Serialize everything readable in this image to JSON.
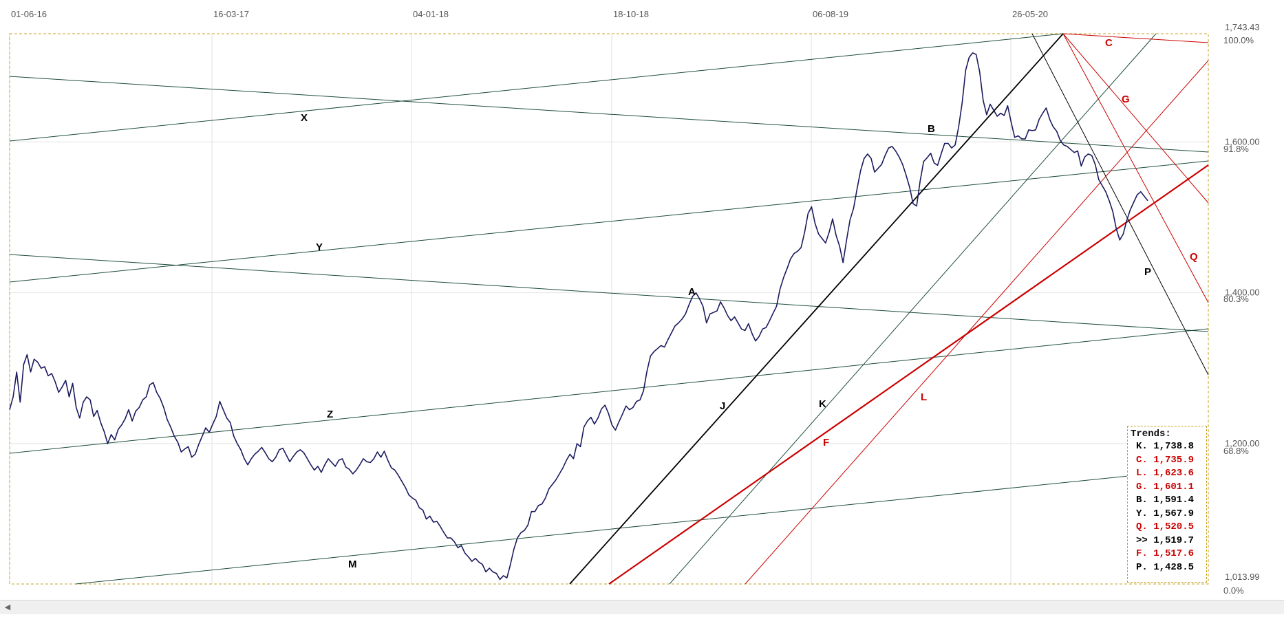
{
  "chart_data": {
    "type": "line",
    "x_tick_labels": [
      "01-06-16",
      "16-03-17",
      "04-01-18",
      "18-10-18",
      "06-08-19",
      "26-05-20"
    ],
    "y_range_labels": {
      "top": "1,743.43",
      "bottom": "1,013.99"
    },
    "y_tick_labels": [
      "1,600.00",
      "1,400.00",
      "1,200.00"
    ],
    "pct_labels": [
      "100.0%",
      "91.8%",
      "80.3%",
      "68.8%",
      "0.0%"
    ],
    "ylim": [
      1013.99,
      1743.43
    ],
    "grid": true,
    "series": [
      {
        "color": "#1a1a5e",
        "values": [
          1245,
          1262,
          1295,
          1255,
          1305,
          1318,
          1295,
          1312,
          1308,
          1300,
          1302,
          1290,
          1293,
          1282,
          1268,
          1275,
          1284,
          1262,
          1280,
          1248,
          1234,
          1255,
          1262,
          1258,
          1236,
          1244,
          1228,
          1216,
          1200,
          1212,
          1205,
          1219,
          1225,
          1233,
          1245,
          1230,
          1243,
          1248,
          1258,
          1262,
          1278,
          1281,
          1268,
          1260,
          1248,
          1232,
          1222,
          1210,
          1202,
          1189,
          1193,
          1196,
          1182,
          1186,
          1199,
          1210,
          1221,
          1215,
          1226,
          1236,
          1256,
          1245,
          1234,
          1228,
          1210,
          1200,
          1192,
          1180,
          1172,
          1180,
          1186,
          1190,
          1195,
          1188,
          1180,
          1176,
          1182,
          1192,
          1194,
          1185,
          1176,
          1183,
          1189,
          1192,
          1188,
          1180,
          1172,
          1165,
          1170,
          1162,
          1172,
          1180,
          1175,
          1170,
          1178,
          1180,
          1169,
          1166,
          1160,
          1165,
          1172,
          1180,
          1176,
          1175,
          1180,
          1189,
          1182,
          1190,
          1178,
          1168,
          1165,
          1158,
          1150,
          1142,
          1132,
          1128,
          1125,
          1115,
          1112,
          1100,
          1104,
          1096,
          1097,
          1090,
          1082,
          1075,
          1075,
          1070,
          1062,
          1065,
          1055,
          1050,
          1044,
          1048,
          1043,
          1040,
          1030,
          1035,
          1030,
          1028,
          1020,
          1025,
          1022,
          1040,
          1060,
          1075,
          1082,
          1085,
          1092,
          1110,
          1110,
          1118,
          1120,
          1128,
          1140,
          1146,
          1152,
          1160,
          1168,
          1178,
          1186,
          1180,
          1200,
          1196,
          1222,
          1230,
          1235,
          1226,
          1234,
          1246,
          1251,
          1240,
          1225,
          1218,
          1229,
          1239,
          1250,
          1245,
          1248,
          1256,
          1258,
          1270,
          1296,
          1316,
          1322,
          1326,
          1330,
          1328,
          1338,
          1347,
          1356,
          1360,
          1365,
          1372,
          1384,
          1395,
          1400,
          1392,
          1382,
          1360,
          1372,
          1374,
          1376,
          1388,
          1380,
          1370,
          1363,
          1368,
          1360,
          1352,
          1350,
          1359,
          1346,
          1336,
          1342,
          1352,
          1354,
          1363,
          1373,
          1382,
          1405,
          1420,
          1432,
          1445,
          1452,
          1455,
          1460,
          1480,
          1505,
          1514,
          1492,
          1478,
          1472,
          1466,
          1480,
          1498,
          1476,
          1462,
          1440,
          1470,
          1497,
          1512,
          1538,
          1562,
          1578,
          1584,
          1578,
          1560,
          1565,
          1570,
          1582,
          1592,
          1594,
          1588,
          1580,
          1570,
          1556,
          1540,
          1518,
          1515,
          1548,
          1574,
          1579,
          1585,
          1572,
          1569,
          1584,
          1598,
          1598,
          1592,
          1596,
          1620,
          1652,
          1695,
          1712,
          1718,
          1716,
          1693,
          1655,
          1636,
          1650,
          1642,
          1634,
          1638,
          1635,
          1648,
          1626,
          1606,
          1608,
          1604,
          1604,
          1616,
          1615,
          1616,
          1630,
          1638,
          1645,
          1630,
          1620,
          1614,
          1602,
          1596,
          1594,
          1590,
          1586,
          1588,
          1568,
          1580,
          1584,
          1582,
          1570,
          1550,
          1542,
          1534,
          1522,
          1508,
          1485,
          1470,
          1478,
          1496,
          1510,
          1520,
          1530,
          1534,
          1528,
          1522
        ]
      }
    ],
    "trend_lines": [
      {
        "name": "X",
        "color": "#1e4d3a"
      },
      {
        "name": "B",
        "color": "#1e4d3a"
      },
      {
        "name": "Y",
        "color": "#1e4d3a"
      },
      {
        "name": "A",
        "color": "#1e4d3a"
      },
      {
        "name": "Z",
        "color": "#1e4d3a"
      },
      {
        "name": "M",
        "color": "#1e4d3a"
      },
      {
        "name": "J",
        "color": "#000000"
      },
      {
        "name": "K",
        "color": "#1e4d3a"
      },
      {
        "name": "F",
        "color": "#cc0000"
      },
      {
        "name": "L",
        "color": "#cc0000"
      },
      {
        "name": "C",
        "color": "#cc0000"
      },
      {
        "name": "G",
        "color": "#cc0000"
      },
      {
        "name": "Q",
        "color": "#cc0000"
      },
      {
        "name": "P",
        "color": "#000000"
      }
    ]
  },
  "legend": {
    "title": "Trends:",
    "items": [
      {
        "text": "K. 1,738.8",
        "color": "#000000"
      },
      {
        "text": "C. 1,735.9",
        "color": "#cc0000"
      },
      {
        "text": "L. 1,623.6",
        "color": "#cc0000"
      },
      {
        "text": "G. 1,601.1",
        "color": "#cc0000"
      },
      {
        "text": "B. 1,591.4",
        "color": "#000000"
      },
      {
        "text": "Y. 1,567.9",
        "color": "#000000"
      },
      {
        "text": "Q. 1,520.5",
        "color": "#cc0000"
      },
      {
        "text": ">> 1,519.7",
        "color": "#000000"
      },
      {
        "text": "F. 1,517.6",
        "color": "#cc0000"
      },
      {
        "text": "P. 1,428.5",
        "color": "#000000"
      }
    ]
  },
  "scrollbar": {
    "left_icon": "arrow-left-icon"
  }
}
